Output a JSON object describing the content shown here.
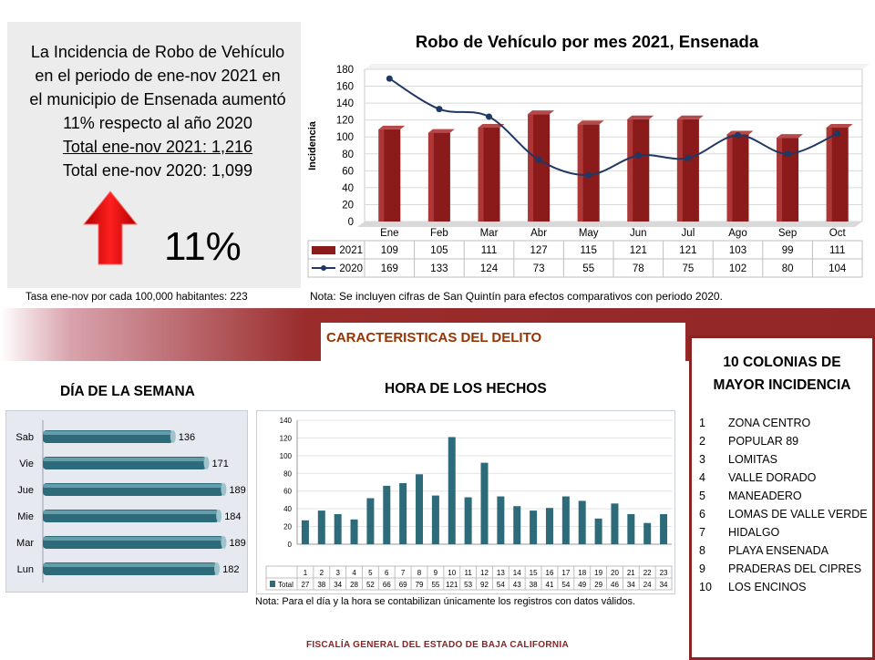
{
  "summary": {
    "lines": [
      "La Incidencia de Robo de Vehículo",
      "en el periodo de ene-nov  2021 en",
      "el municipio de Ensenada aumentó",
      "11% respecto  al año 2020"
    ],
    "total_2021": "Total ene-nov 2021:   1,216",
    "total_2020": "Total ene-nov 2020:    1,099",
    "percent": "11%",
    "trend": "up-arrow-icon",
    "rate": "Tasa ene-nov por cada 100,000  habitantes: 223"
  },
  "notes": {
    "top": "Nota: Se incluyen cifras de San Quintín para efectos comparativos con  periodo 2020.",
    "bottom": "Nota:  Para el día y la hora se contabilizan únicamente los registros con datos válidos."
  },
  "section_title": "CARACTERISTICAS DEL DELITO",
  "day_title": "DÍA DE LA SEMANA",
  "hour_title": "HORA DE LOS HECHOS",
  "colonias": {
    "title_line1": "10 COLONIAS DE",
    "title_line2": "MAYOR INCIDENCIA",
    "items": [
      {
        "num": "1",
        "name": "ZONA CENTRO"
      },
      {
        "num": "2",
        "name": "POPULAR 89"
      },
      {
        "num": "3",
        "name": "LOMITAS"
      },
      {
        "num": "4",
        "name": "VALLE DORADO"
      },
      {
        "num": "5",
        "name": "MANEADERO"
      },
      {
        "num": "6",
        "name": "LOMAS DE VALLE VERDE"
      },
      {
        "num": "7",
        "name": "HIDALGO"
      },
      {
        "num": "8",
        "name": "PLAYA ENSENADA"
      },
      {
        "num": "9",
        "name": "PRADERAS DEL CIPRES"
      },
      {
        "num": "10",
        "name": "LOS ENCINOS"
      }
    ]
  },
  "footer": "FISCALÍA GENERAL DEL ESTADO DE BAJA CALIFORNIA",
  "colors": {
    "bar_2021": "#8b1a1a",
    "line_2020": "#1f3864",
    "teal": "#2e6b7a",
    "accent": "#8b2323"
  },
  "chart_data": [
    {
      "type": "bar",
      "title": "Robo de Vehículo por mes 2021, Ensenada",
      "ylabel": "Incidencia",
      "categories": [
        "Ene",
        "Feb",
        "Mar",
        "Abr",
        "May",
        "Jun",
        "Jul",
        "Ago",
        "Sep",
        "Oct"
      ],
      "series": [
        {
          "name": "2021",
          "type": "bar",
          "values": [
            109,
            105,
            111,
            127,
            115,
            121,
            121,
            103,
            99,
            111
          ]
        },
        {
          "name": "2020",
          "type": "line",
          "values": [
            169,
            133,
            124,
            73,
            55,
            78,
            75,
            102,
            80,
            104
          ]
        }
      ],
      "ylim": [
        0,
        180
      ],
      "yticks": [
        0,
        20,
        40,
        60,
        80,
        100,
        120,
        140,
        160,
        180
      ],
      "grid": true,
      "legend": "data-table"
    },
    {
      "type": "bar",
      "orientation": "horizontal",
      "categories": [
        "Sab",
        "Vie",
        "Jue",
        "Mie",
        "Mar",
        "Lun"
      ],
      "values": [
        136,
        171,
        189,
        184,
        189,
        182
      ],
      "xlim": [
        0,
        200
      ]
    },
    {
      "type": "bar",
      "categories": [
        "1",
        "2",
        "3",
        "4",
        "5",
        "6",
        "7",
        "8",
        "9",
        "10",
        "11",
        "12",
        "13",
        "14",
        "15",
        "16",
        "17",
        "18",
        "19",
        "20",
        "21",
        "22",
        "23"
      ],
      "series": [
        {
          "name": "Total",
          "values": [
            27,
            38,
            34,
            28,
            52,
            66,
            69,
            79,
            55,
            121,
            53,
            92,
            54,
            43,
            38,
            41,
            54,
            49,
            29,
            46,
            34,
            24,
            34
          ]
        }
      ],
      "ylim": [
        0,
        140
      ],
      "yticks": [
        0,
        20,
        40,
        60,
        80,
        100,
        120,
        140
      ],
      "grid": true,
      "legend": "data-table"
    }
  ]
}
